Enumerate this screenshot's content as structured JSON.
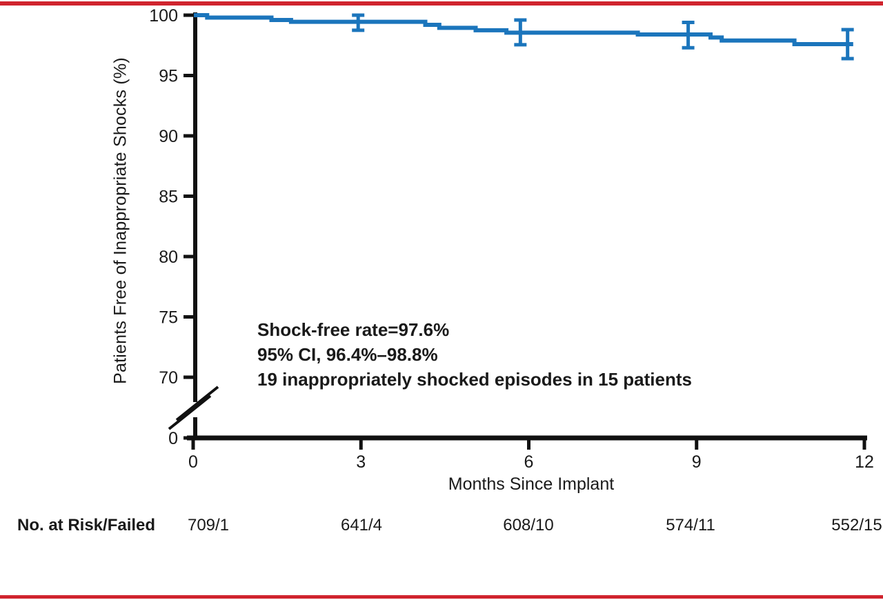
{
  "page": {
    "background_color": "#FFFFFF",
    "top_rule_color": "#D0242E",
    "bottom_rule_color": "#D0242E"
  },
  "chart_data": {
    "type": "line",
    "subtype": "kaplan-meier-step-curve",
    "title": "",
    "xlabel": "Months Since Implant",
    "ylabel": "Patients Free of Inappropriate Shocks (%)",
    "xlim": [
      0,
      12
    ],
    "ylim": [
      70,
      100
    ],
    "x_ticks": [
      0,
      3,
      6,
      9,
      12
    ],
    "y_ticks": [
      100,
      95,
      90,
      85,
      80,
      75,
      70
    ],
    "y_axis_break": true,
    "y_zero_tick_label": "0",
    "grid": false,
    "legend": "none",
    "line_color": "#1B75BC",
    "axis_color": "#111111",
    "series": [
      {
        "name": "Patients free of inappropriate shocks",
        "step_points": [
          [
            0,
            100.0
          ],
          [
            0.25,
            99.8
          ],
          [
            1.4,
            99.6
          ],
          [
            1.75,
            99.45
          ],
          [
            4.15,
            99.2
          ],
          [
            4.4,
            98.95
          ],
          [
            5.05,
            98.75
          ],
          [
            5.6,
            98.55
          ],
          [
            7.95,
            98.4
          ],
          [
            9.25,
            98.15
          ],
          [
            9.45,
            97.9
          ],
          [
            10.75,
            97.6
          ]
        ],
        "end_month": 11.8
      }
    ],
    "error_bars": [
      {
        "month": 2.95,
        "center": 99.45,
        "lower": 98.75,
        "upper": 100.0
      },
      {
        "month": 5.85,
        "center": 98.55,
        "lower": 97.55,
        "upper": 99.6
      },
      {
        "month": 8.85,
        "center": 98.4,
        "lower": 97.3,
        "upper": 99.4
      },
      {
        "month": 11.7,
        "center": 97.6,
        "lower": 96.4,
        "upper": 98.8
      }
    ],
    "annotation": {
      "lines": [
        "Shock-free rate=97.6%",
        "95% CI, 96.4%–98.8%",
        "19 inappropriately shocked episodes in 15 patients"
      ]
    },
    "risk_table": {
      "label": "No. at Risk/Failed",
      "months": [
        0,
        3,
        6,
        9,
        12
      ],
      "values": [
        "709/1",
        "641/4",
        "608/10",
        "574/11",
        "552/15"
      ]
    }
  }
}
